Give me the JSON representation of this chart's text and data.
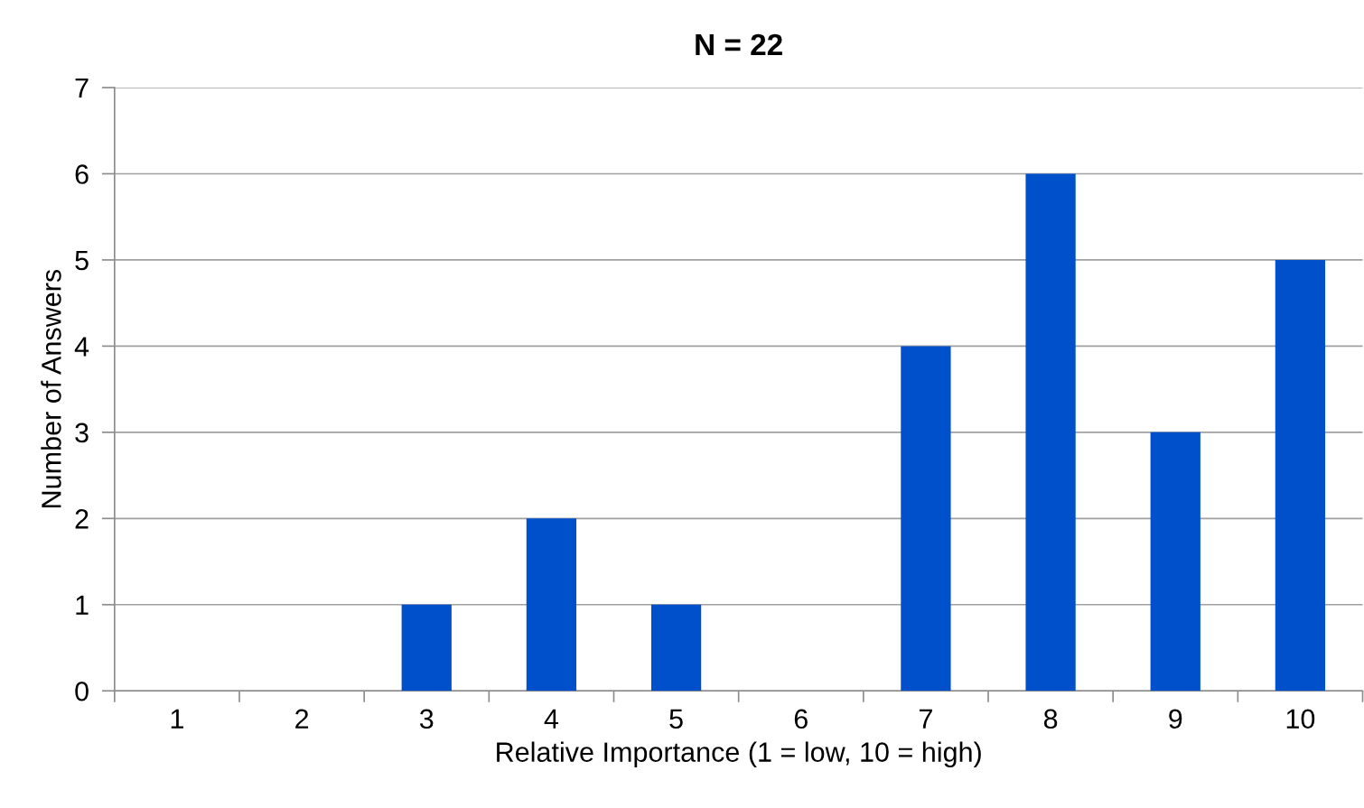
{
  "chart_data": {
    "type": "bar",
    "title": "N = 22",
    "xlabel": "Relative Importance (1 = low, 10 = high)",
    "ylabel": "Number of Answers",
    "categories": [
      "1",
      "2",
      "3",
      "4",
      "5",
      "6",
      "7",
      "8",
      "9",
      "10"
    ],
    "values": [
      0,
      0,
      1,
      2,
      1,
      0,
      4,
      6,
      3,
      5
    ],
    "color": "#0050cc",
    "ylim": [
      0,
      7
    ],
    "yticks": [
      0,
      1,
      2,
      3,
      4,
      5,
      6,
      7
    ],
    "grid": "y"
  }
}
